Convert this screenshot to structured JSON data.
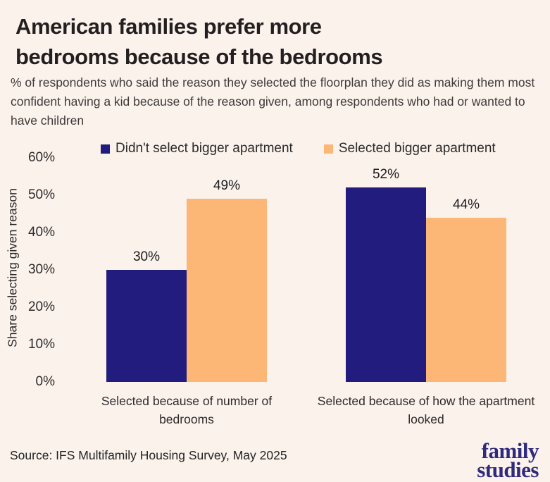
{
  "header": {
    "title_line1": "American families prefer more",
    "title_line2": "bedrooms because of the bedrooms",
    "subtitle": "% of respondents who said the reason they selected the floorplan they did as making them most confident having a kid because of the reason given, among respondents who had or wanted to have children"
  },
  "chart_data": {
    "type": "bar",
    "title": "American families prefer more bedrooms because of the bedrooms",
    "xlabel": "",
    "ylabel": "Share selecting given reason",
    "ylim": [
      0,
      60
    ],
    "ytick_step": 10,
    "ytick_suffix": "%",
    "grid": false,
    "legend_position": "top",
    "categories": [
      "Selected because of number of bedrooms",
      "Selected because of how the apartment looked"
    ],
    "series": [
      {
        "name": "Didn't select bigger apartment",
        "color": "#211c7d",
        "values": [
          30,
          52
        ],
        "labels": [
          "30%",
          "52%"
        ]
      },
      {
        "name": "Selected bigger apartment",
        "color": "#fcb676",
        "values": [
          49,
          44
        ],
        "labels": [
          "49%",
          "44%"
        ]
      }
    ]
  },
  "footer": {
    "source": "Source: IFS Multifamily Housing Survey, May 2025",
    "logo_line1": "family",
    "logo_line2": "studies"
  },
  "colors": {
    "background": "#fbf2ec",
    "navy": "#211c7d",
    "orange": "#fcb676",
    "logo_navy": "#302a7c",
    "title_text": "#231f20",
    "body_text": "#2b2b2b"
  }
}
